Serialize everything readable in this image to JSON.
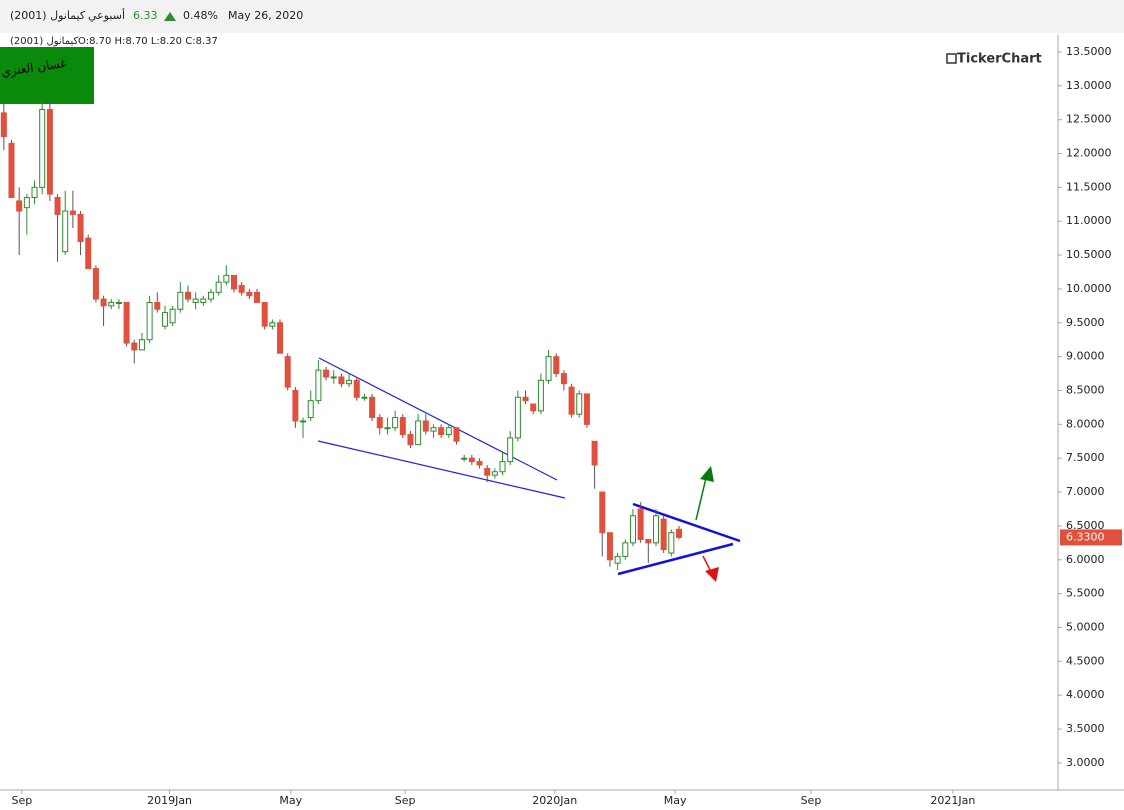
{
  "header": {
    "symbol": "كيمانول (2001)",
    "period": "أسبوعي",
    "price": "6.33",
    "change": "0.48%",
    "date": "May 26, 2020"
  },
  "chart_data": {
    "type": "candlestick",
    "legend": {
      "symbol": "كيمانول (2001)",
      "ohlc": "O:8.70 H:8.70 L:8.20 C:8.37"
    },
    "badge": "غسان العنزي",
    "logo": "TickerChart",
    "up_color": "#2e8b2e",
    "down_color": "#e0503c",
    "x": [
      0,
      1,
      2,
      3,
      4,
      5,
      6,
      7,
      8,
      9,
      10,
      11,
      12,
      13,
      14,
      15,
      16,
      17,
      18,
      19,
      20,
      21,
      22,
      23,
      24,
      25,
      26,
      27,
      28,
      29,
      30,
      31,
      32,
      33,
      34,
      35,
      36,
      37,
      38,
      39,
      40,
      41,
      42,
      43,
      44,
      45,
      46,
      47,
      48,
      49,
      50,
      51,
      52,
      53,
      54,
      55,
      56,
      57,
      58,
      59,
      60,
      61,
      62,
      63,
      64,
      65,
      66,
      67,
      68,
      69,
      70,
      71,
      72,
      73,
      74,
      75,
      76,
      77,
      78,
      79,
      80,
      81,
      82,
      83,
      84,
      85,
      86,
      87,
      88
    ],
    "open": [
      12.6,
      12.15,
      11.3,
      11.2,
      11.35,
      11.5,
      12.65,
      11.35,
      10.55,
      11.15,
      11.1,
      10.75,
      10.3,
      9.85,
      9.75,
      9.8,
      9.8,
      9.2,
      9.1,
      9.25,
      9.8,
      9.45,
      9.5,
      9.7,
      9.95,
      9.8,
      9.8,
      9.85,
      9.95,
      10.1,
      10.2,
      10.05,
      9.95,
      9.95,
      9.8,
      9.45,
      9.5,
      9.0,
      8.5,
      8.05,
      8.1,
      8.35,
      8.8,
      8.7,
      8.7,
      8.6,
      8.65,
      8.4,
      8.4,
      8.1,
      7.95,
      7.95,
      8.1,
      7.85,
      7.7,
      8.05,
      7.9,
      7.95,
      7.85,
      7.95,
      7.5,
      7.5,
      7.45,
      7.35,
      7.25,
      7.3,
      7.45,
      7.8,
      8.4,
      8.3,
      8.2,
      8.65,
      9.0,
      8.75,
      8.55,
      8.15,
      8.45,
      7.75,
      7.0,
      6.4,
      5.95,
      6.05,
      6.25,
      6.75,
      6.3,
      6.25,
      6.6,
      6.1,
      6.45
    ],
    "high": [
      12.8,
      12.2,
      11.5,
      11.4,
      11.6,
      12.8,
      12.8,
      11.4,
      11.45,
      11.45,
      11.15,
      10.8,
      10.35,
      9.9,
      9.85,
      9.85,
      9.8,
      9.25,
      9.35,
      9.9,
      9.95,
      9.75,
      9.75,
      10.1,
      10.05,
      9.95,
      9.9,
      10.0,
      10.2,
      10.35,
      10.2,
      10.1,
      10.0,
      10.0,
      9.8,
      9.55,
      9.55,
      9.05,
      8.55,
      8.1,
      8.5,
      8.95,
      8.85,
      8.8,
      8.75,
      8.75,
      8.7,
      8.45,
      8.45,
      8.15,
      8.1,
      8.2,
      8.15,
      7.9,
      8.15,
      8.15,
      8.0,
      8.0,
      8.0,
      7.95,
      7.55,
      7.55,
      7.5,
      7.4,
      7.35,
      7.6,
      7.9,
      8.5,
      8.5,
      8.3,
      8.75,
      9.1,
      9.05,
      8.8,
      8.6,
      8.5,
      8.45,
      7.75,
      7.0,
      6.4,
      6.1,
      6.3,
      6.75,
      6.85,
      6.3,
      6.75,
      6.65,
      6.45,
      6.5
    ],
    "low": [
      12.05,
      11.35,
      10.5,
      10.8,
      11.25,
      11.4,
      11.3,
      10.4,
      10.5,
      10.9,
      10.5,
      10.3,
      9.8,
      9.45,
      9.7,
      9.7,
      9.15,
      8.9,
      9.1,
      9.2,
      9.65,
      9.4,
      9.45,
      9.65,
      9.8,
      9.7,
      9.75,
      9.8,
      9.9,
      10.05,
      9.95,
      9.9,
      9.85,
      9.8,
      9.4,
      9.4,
      9.05,
      8.5,
      7.95,
      7.8,
      8.05,
      8.3,
      8.65,
      8.6,
      8.55,
      8.55,
      8.35,
      8.35,
      8.05,
      7.85,
      7.85,
      7.9,
      7.8,
      7.65,
      7.7,
      7.85,
      7.8,
      7.8,
      7.8,
      7.7,
      7.45,
      7.4,
      7.35,
      7.15,
      7.2,
      7.25,
      7.4,
      7.75,
      8.3,
      8.15,
      8.15,
      8.6,
      8.7,
      8.5,
      8.1,
      8.1,
      7.95,
      7.05,
      6.05,
      5.9,
      5.85,
      6.0,
      6.2,
      6.25,
      5.95,
      6.2,
      6.1,
      6.05,
      6.3
    ],
    "close": [
      12.25,
      11.35,
      11.15,
      11.35,
      11.5,
      12.65,
      11.4,
      11.1,
      11.15,
      11.1,
      10.7,
      10.3,
      9.85,
      9.75,
      9.8,
      9.8,
      9.2,
      9.1,
      9.25,
      9.8,
      9.7,
      9.65,
      9.7,
      9.95,
      9.85,
      9.85,
      9.85,
      9.95,
      10.1,
      10.2,
      10.0,
      9.95,
      9.9,
      9.8,
      9.45,
      9.5,
      9.05,
      8.55,
      8.05,
      8.05,
      8.35,
      8.8,
      8.7,
      8.7,
      8.6,
      8.65,
      8.4,
      8.4,
      8.1,
      7.95,
      7.95,
      8.1,
      7.85,
      7.7,
      8.05,
      7.9,
      7.95,
      7.85,
      7.95,
      7.75,
      7.5,
      7.45,
      7.4,
      7.25,
      7.3,
      7.45,
      7.8,
      8.4,
      8.35,
      8.2,
      8.65,
      9.0,
      8.75,
      8.6,
      8.15,
      8.45,
      8.0,
      7.4,
      6.4,
      6.0,
      6.05,
      6.25,
      6.65,
      6.3,
      6.25,
      6.65,
      6.15,
      6.4,
      6.33
    ],
    "last_price": {
      "value": 6.33,
      "label": "6.3300"
    },
    "xlim": [
      -0.5,
      137.4
    ],
    "xticks": [
      {
        "value": 2.35,
        "label": "Sep"
      },
      {
        "value": 21.6,
        "label": "2019Jan"
      },
      {
        "value": 37.4,
        "label": "May"
      },
      {
        "value": 52.3,
        "label": "Sep"
      },
      {
        "value": 71.8,
        "label": "2020Jan"
      },
      {
        "value": 87.5,
        "label": "May"
      },
      {
        "value": 105.2,
        "label": "Sep"
      },
      {
        "value": 123.7,
        "label": "2021Jan"
      }
    ],
    "ylim": [
      2.6,
      13.75
    ],
    "yticks": [
      {
        "value": 13.5,
        "label": "13.5000"
      },
      {
        "value": 13,
        "label": "13.0000"
      },
      {
        "value": 12.5,
        "label": "12.5000"
      },
      {
        "value": 12,
        "label": "12.0000"
      },
      {
        "value": 11.5,
        "label": "11.5000"
      },
      {
        "value": 11,
        "label": "11.0000"
      },
      {
        "value": 10.5,
        "label": "10.5000"
      },
      {
        "value": 10,
        "label": "10.0000"
      },
      {
        "value": 9.5,
        "label": "9.5000"
      },
      {
        "value": 9,
        "label": "9.0000"
      },
      {
        "value": 8.5,
        "label": "8.5000"
      },
      {
        "value": 8,
        "label": "8.0000"
      },
      {
        "value": 7.5,
        "label": "7.5000"
      },
      {
        "value": 7,
        "label": "7.0000"
      },
      {
        "value": 6.5,
        "label": "6.5000"
      },
      {
        "value": 6,
        "label": "6.0000"
      },
      {
        "value": 5.5,
        "label": "5.5000"
      },
      {
        "value": 5,
        "label": "5.0000"
      },
      {
        "value": 4.5,
        "label": "4.5000"
      },
      {
        "value": 4,
        "label": "4.0000"
      },
      {
        "value": 3.5,
        "label": "3.5000"
      },
      {
        "value": 3,
        "label": "3.0000"
      }
    ],
    "grid": false
  }
}
